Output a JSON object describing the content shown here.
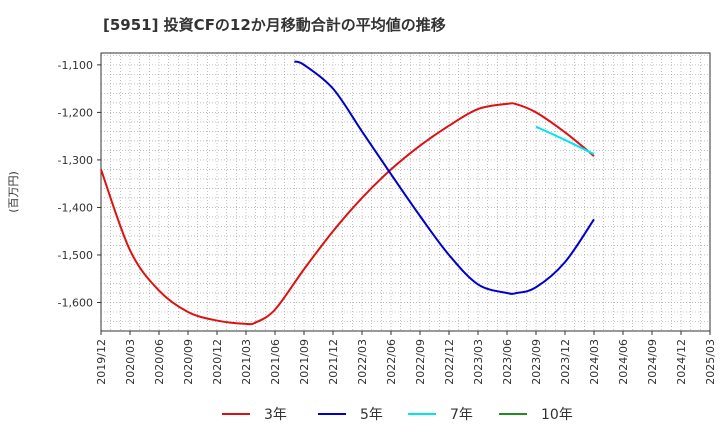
{
  "chart_data": {
    "type": "line",
    "title": "[5951]  投資CFの12か月移動合計の平均値の推移",
    "ylabel": "(百万円)",
    "xlabel": "",
    "ylim": [
      -1660,
      -1075
    ],
    "yticks": [
      -1100,
      -1200,
      -1300,
      -1400,
      -1500,
      -1600
    ],
    "ytick_labels": [
      "-1,100",
      "-1,200",
      "-1,300",
      "-1,400",
      "-1,500",
      "-1,600"
    ],
    "x_start": "2019-12",
    "x_end": "2025-03",
    "xtick_labels": [
      "2019/12",
      "2020/03",
      "2020/06",
      "2020/09",
      "2020/12",
      "2021/03",
      "2021/06",
      "2021/09",
      "2021/12",
      "2022/03",
      "2022/06",
      "2022/09",
      "2022/12",
      "2023/03",
      "2023/06",
      "2023/09",
      "2023/12",
      "2024/03",
      "2024/06",
      "2024/09",
      "2024/12",
      "2025/03"
    ],
    "grid": true,
    "legend_position": "bottom",
    "series": [
      {
        "name": "3年",
        "color": "#dd1111",
        "x": [
          "2019-12",
          "2020-03",
          "2020-06",
          "2020-09",
          "2020-12",
          "2021-03",
          "2021-04",
          "2021-06",
          "2021-09",
          "2021-12",
          "2022-03",
          "2022-06",
          "2022-09",
          "2022-12",
          "2023-03",
          "2023-06",
          "2023-07",
          "2023-09",
          "2023-12",
          "2024-03"
        ],
        "values": [
          -1320,
          -1490,
          -1575,
          -1620,
          -1638,
          -1645,
          -1642,
          -1615,
          -1530,
          -1450,
          -1380,
          -1320,
          -1270,
          -1228,
          -1193,
          -1182,
          -1183,
          -1200,
          -1242,
          -1292
        ]
      },
      {
        "name": "5年",
        "color": "#0000cc",
        "x": [
          "2021-08",
          "2021-09",
          "2021-12",
          "2022-03",
          "2022-06",
          "2022-09",
          "2022-12",
          "2023-03",
          "2023-06",
          "2023-07",
          "2023-09",
          "2023-12",
          "2024-03"
        ],
        "values": [
          -1093,
          -1100,
          -1150,
          -1240,
          -1330,
          -1418,
          -1500,
          -1562,
          -1580,
          -1580,
          -1568,
          -1515,
          -1425
        ]
      },
      {
        "name": "7年",
        "color": "#00e5ee",
        "x": [
          "2023-09",
          "2023-12",
          "2024-03"
        ],
        "values": [
          -1230,
          -1258,
          -1288
        ]
      },
      {
        "name": "10年",
        "color": "#228b22",
        "x": [],
        "values": []
      }
    ]
  }
}
